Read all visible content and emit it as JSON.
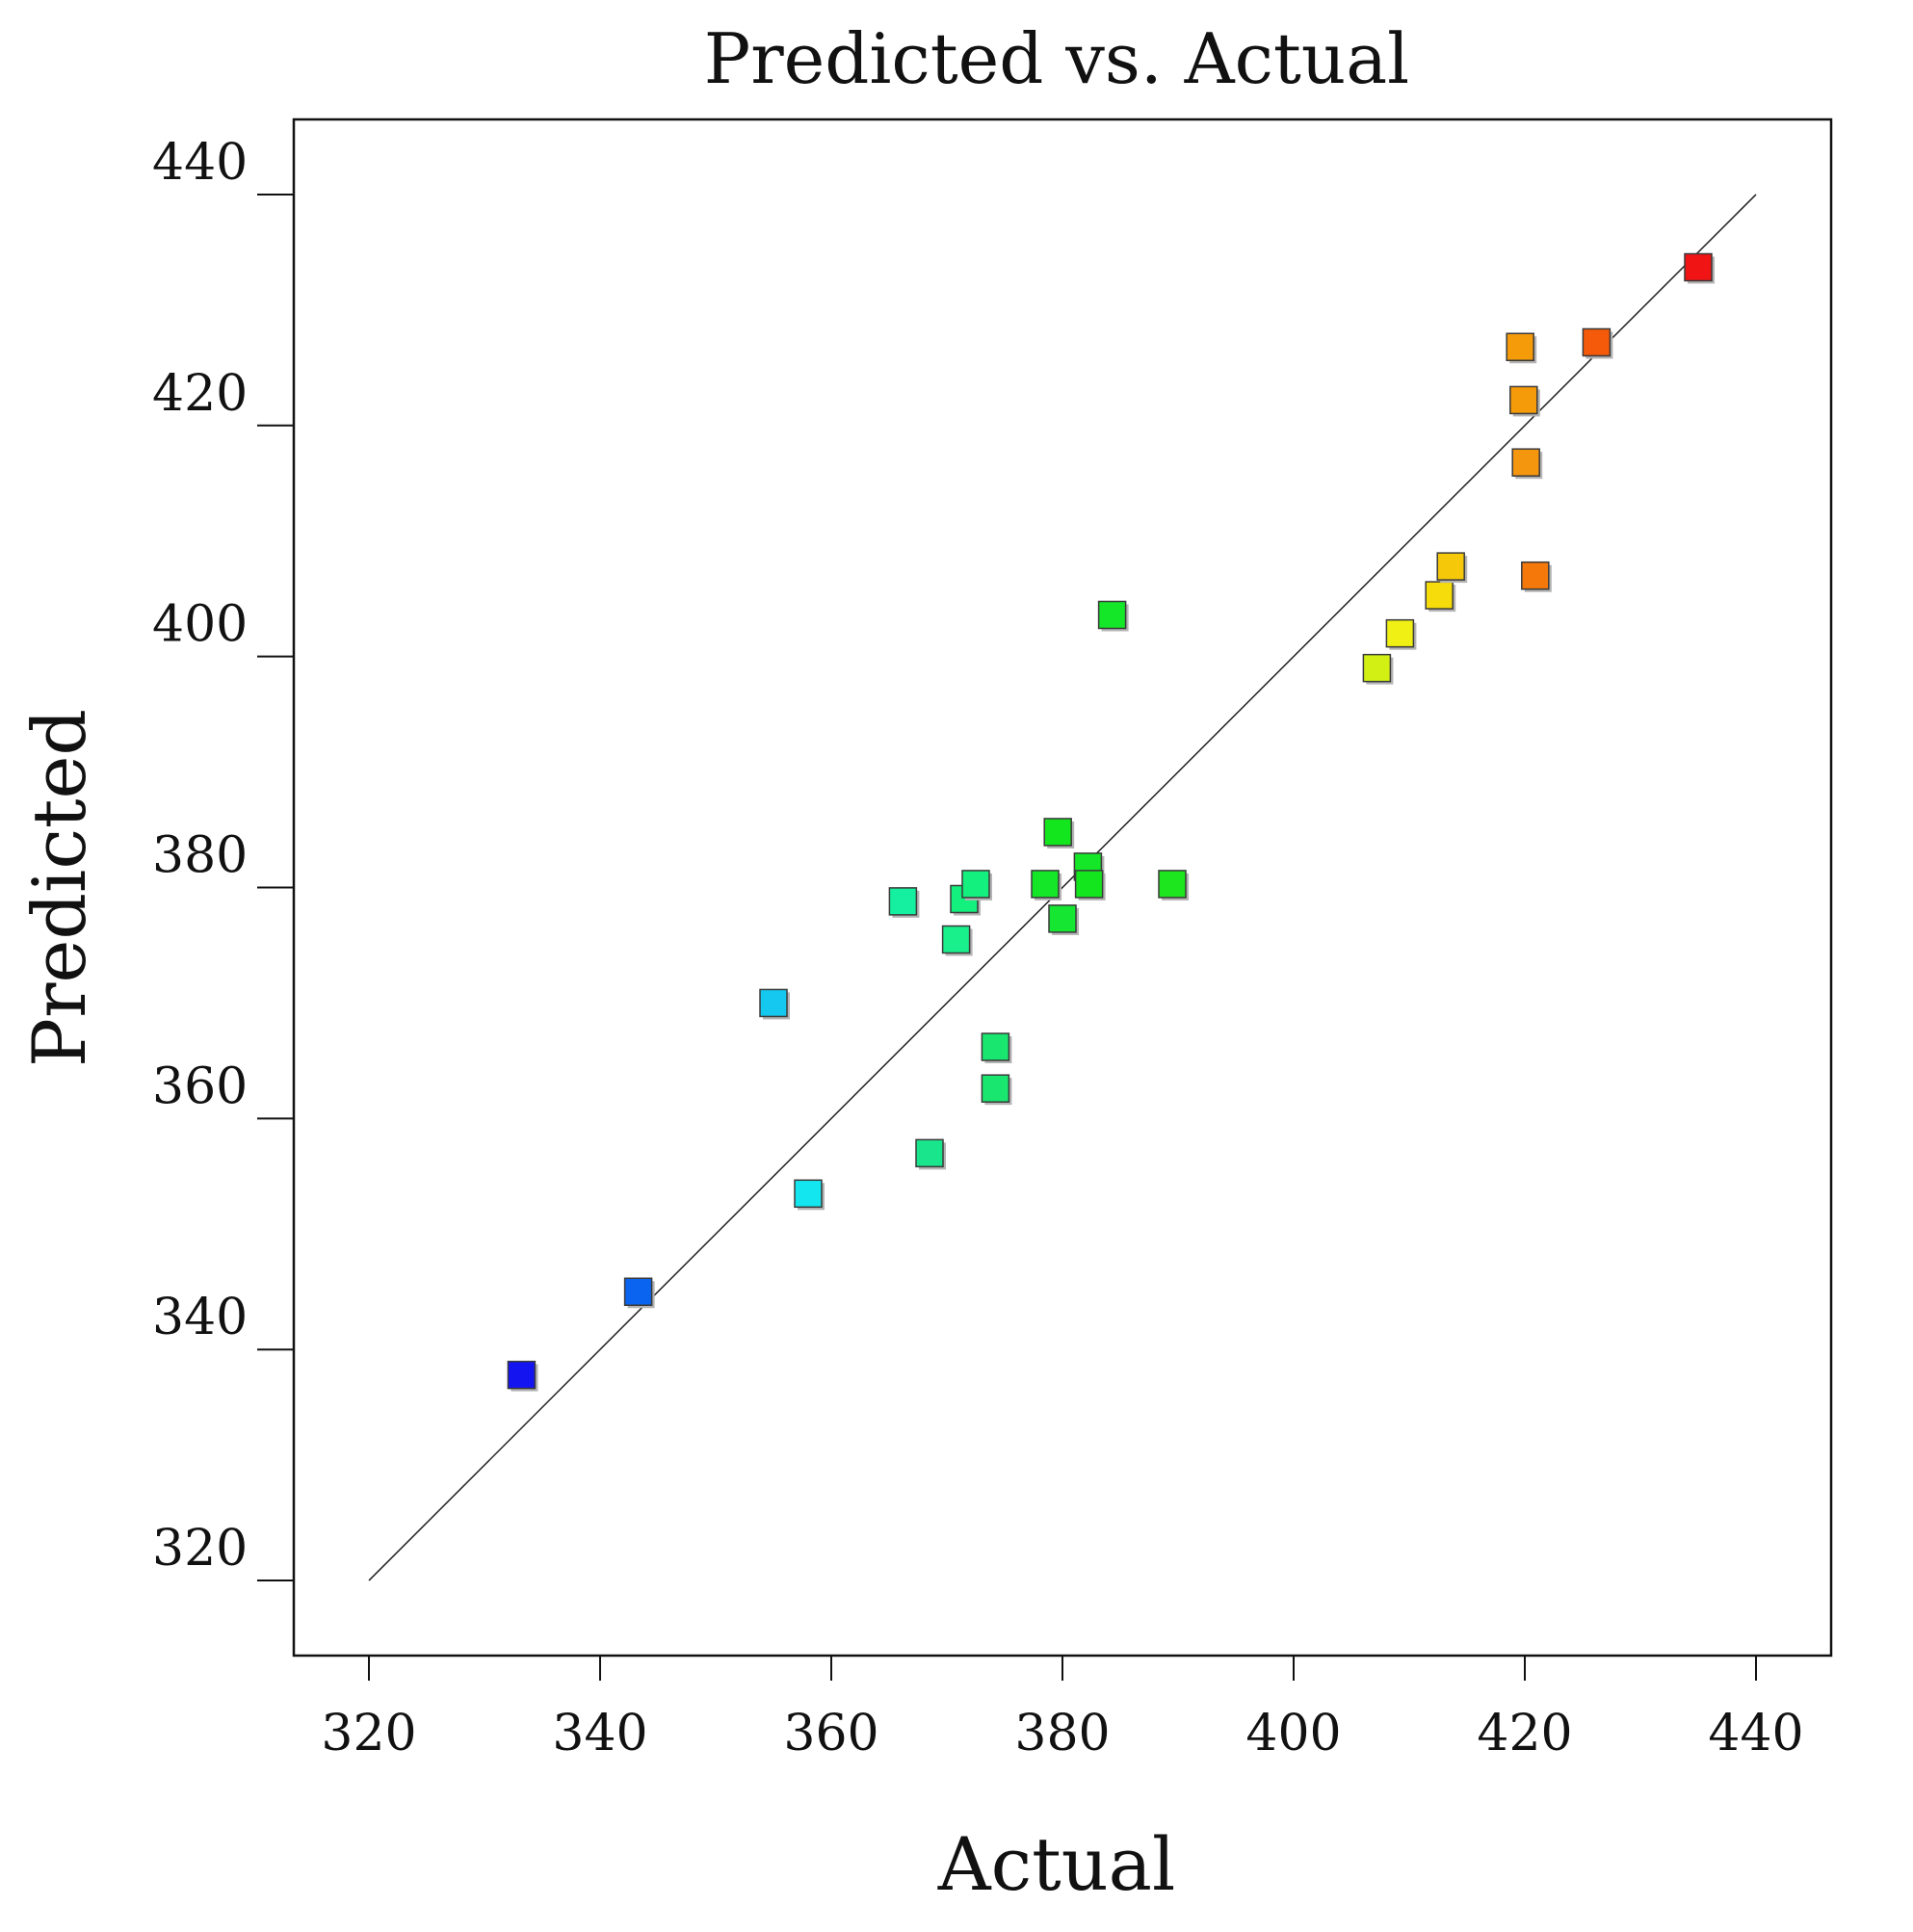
{
  "chart_data": {
    "type": "scatter",
    "title": "Predicted vs. Actual",
    "xlabel": "Actual",
    "ylabel": "Predicted",
    "xlim": [
      313.5,
      446.5
    ],
    "ylim": [
      313.5,
      446.5
    ],
    "xticks": [
      320,
      340,
      360,
      380,
      400,
      420,
      440
    ],
    "yticks": [
      320,
      340,
      360,
      380,
      400,
      420,
      440
    ],
    "xtick_labels": [
      "320",
      "340",
      "360",
      "380",
      "400",
      "420",
      "440"
    ],
    "ytick_labels": [
      "320",
      "340",
      "360",
      "380",
      "400",
      "420",
      "440"
    ],
    "reference_line": {
      "from": [
        320,
        320
      ],
      "to": [
        440,
        440
      ]
    },
    "grid": false,
    "color_scale": "value-based (blue low → green → yellow → red high)",
    "points": [
      {
        "x": 333.2,
        "y": 337.8,
        "color": "#1414f0"
      },
      {
        "x": 343.3,
        "y": 345.0,
        "color": "#0a64f0"
      },
      {
        "x": 355.0,
        "y": 370.0,
        "color": "#14c8f0"
      },
      {
        "x": 358.0,
        "y": 353.5,
        "color": "#14e6f0"
      },
      {
        "x": 366.2,
        "y": 378.8,
        "color": "#14f0a0"
      },
      {
        "x": 368.5,
        "y": 357.0,
        "color": "#19e68c"
      },
      {
        "x": 370.8,
        "y": 375.5,
        "color": "#19f08c"
      },
      {
        "x": 371.5,
        "y": 379.0,
        "color": "#14f07d"
      },
      {
        "x": 372.5,
        "y": 380.3,
        "color": "#14f07d"
      },
      {
        "x": 374.2,
        "y": 366.2,
        "color": "#19e66e"
      },
      {
        "x": 374.2,
        "y": 362.6,
        "color": "#19e66e"
      },
      {
        "x": 378.5,
        "y": 380.3,
        "color": "#14e628"
      },
      {
        "x": 379.6,
        "y": 384.8,
        "color": "#14e61e"
      },
      {
        "x": 380.0,
        "y": 377.3,
        "color": "#14e632"
      },
      {
        "x": 382.2,
        "y": 381.8,
        "color": "#14e628"
      },
      {
        "x": 382.3,
        "y": 380.3,
        "color": "#14e61e"
      },
      {
        "x": 384.3,
        "y": 403.6,
        "color": "#14e628"
      },
      {
        "x": 389.5,
        "y": 380.3,
        "color": "#1ee61e"
      },
      {
        "x": 407.2,
        "y": 399.0,
        "color": "#d2f014"
      },
      {
        "x": 409.2,
        "y": 402.0,
        "color": "#f0f014"
      },
      {
        "x": 412.6,
        "y": 405.3,
        "color": "#f5dc0a"
      },
      {
        "x": 413.6,
        "y": 407.8,
        "color": "#f5c80a"
      },
      {
        "x": 419.6,
        "y": 426.8,
        "color": "#f59b0a"
      },
      {
        "x": 419.9,
        "y": 422.2,
        "color": "#f59b0a"
      },
      {
        "x": 420.1,
        "y": 416.8,
        "color": "#f5960f"
      },
      {
        "x": 420.9,
        "y": 407.0,
        "color": "#f5780a"
      },
      {
        "x": 426.2,
        "y": 427.2,
        "color": "#f55a0a"
      },
      {
        "x": 435.0,
        "y": 433.7,
        "color": "#f01414"
      }
    ]
  }
}
